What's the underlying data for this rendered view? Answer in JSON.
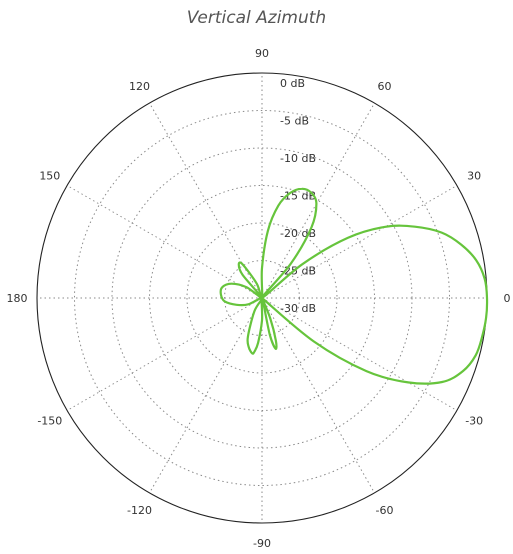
{
  "chart_data": {
    "type": "polar-line",
    "title": "Vertical Azimuth",
    "angle_unit": "degrees",
    "angle_ticks": [
      90,
      60,
      30,
      0,
      -30,
      -60,
      -90,
      -120,
      -150,
      180,
      150,
      120
    ],
    "radial_unit": "dB",
    "radial_range": [
      -30,
      0
    ],
    "radial_ticks": [
      "0 dB",
      "-5 dB",
      "-10 dB",
      "-15 dB",
      "-20 dB",
      "-25 dB",
      "-30 dB"
    ],
    "radial_tick_values": [
      0,
      -5,
      -10,
      -15,
      -20,
      -25,
      -30
    ],
    "grid": true,
    "series": [
      {
        "color": "#66c43c",
        "points": [
          [
            -45,
            -30
          ],
          [
            -40,
            -21
          ],
          [
            -35,
            -13
          ],
          [
            -30,
            -7.5
          ],
          [
            -25,
            -3.5
          ],
          [
            -20,
            -1.5
          ],
          [
            -15,
            -0.5
          ],
          [
            -10,
            -0.2
          ],
          [
            -5,
            0
          ],
          [
            0,
            0
          ],
          [
            5,
            -0.2
          ],
          [
            10,
            -1
          ],
          [
            15,
            -2.5
          ],
          [
            20,
            -4.5
          ],
          [
            25,
            -7.5
          ],
          [
            30,
            -11
          ],
          [
            35,
            -16
          ],
          [
            40,
            -23
          ],
          [
            45,
            -30
          ],
          [
            50,
            -24
          ],
          [
            55,
            -18.5
          ],
          [
            60,
            -15.5
          ],
          [
            65,
            -14.5
          ],
          [
            70,
            -14.5
          ],
          [
            75,
            -15.5
          ],
          [
            80,
            -17.5
          ],
          [
            85,
            -21
          ],
          [
            90,
            -26
          ],
          [
            95,
            -30
          ],
          [
            110,
            -28
          ],
          [
            120,
            -24.8
          ],
          [
            125,
            -24.6
          ],
          [
            130,
            -26
          ],
          [
            135,
            -30
          ],
          [
            145,
            -27.5
          ],
          [
            155,
            -25.5
          ],
          [
            165,
            -24.5
          ],
          [
            175,
            -24.5
          ],
          [
            185,
            -25
          ],
          [
            195,
            -26.5
          ],
          [
            205,
            -28
          ],
          [
            215,
            -30
          ],
          [
            240,
            -28
          ],
          [
            250,
            -24.5
          ],
          [
            255,
            -23.2
          ],
          [
            260,
            -22.5
          ],
          [
            262,
            -22.8
          ],
          [
            265,
            -24
          ],
          [
            270,
            -27
          ],
          [
            275,
            -30
          ],
          [
            282,
            -25
          ],
          [
            285,
            -23
          ],
          [
            288,
            -24
          ],
          [
            292,
            -27
          ],
          [
            300,
            -30
          ],
          [
            315,
            -30
          ]
        ]
      }
    ]
  }
}
